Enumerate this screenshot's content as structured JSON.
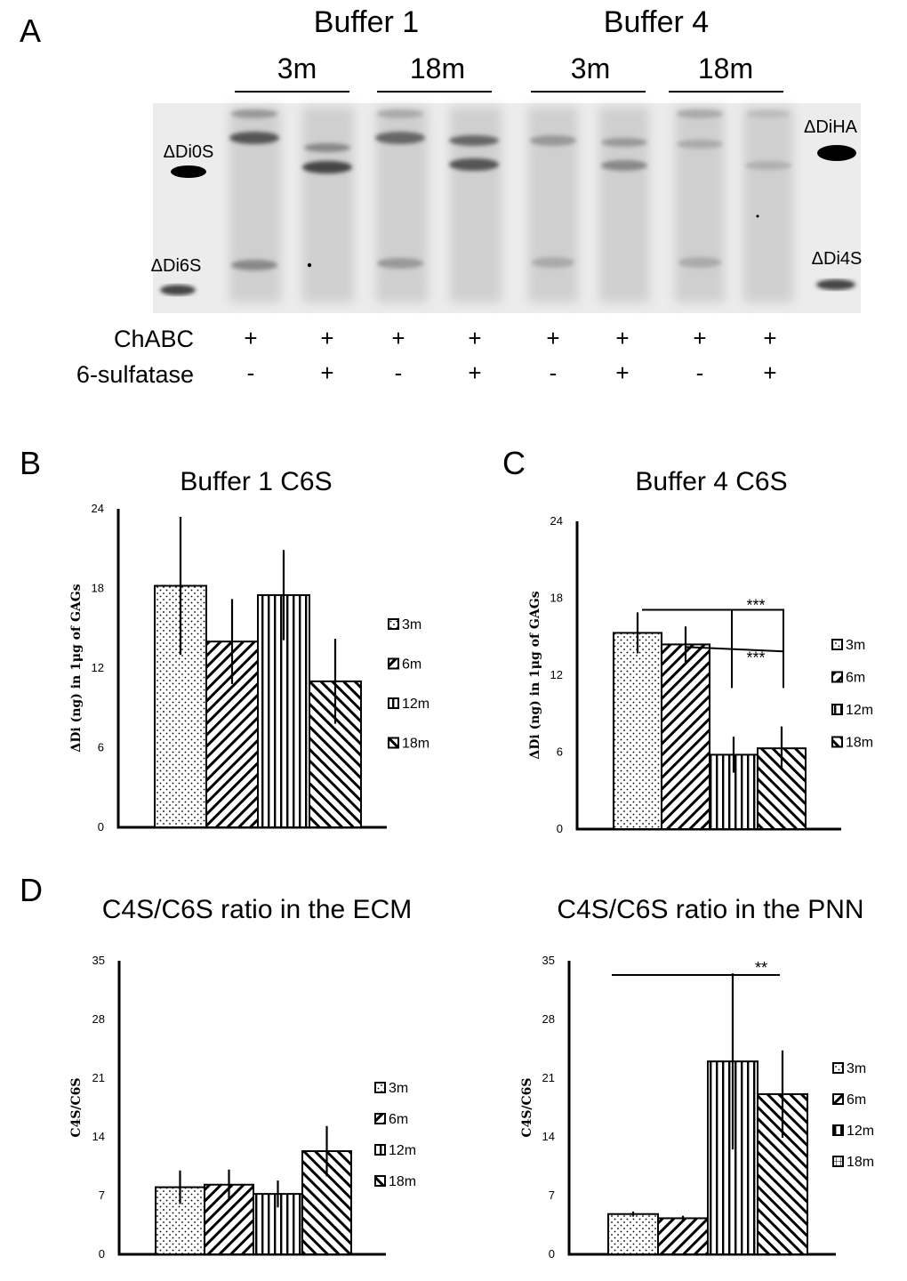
{
  "panel_a": {
    "letter": "A",
    "buffer_headers": [
      "Buffer 1",
      "Buffer 4"
    ],
    "age_headers": [
      "3m",
      "18m",
      "3m",
      "18m"
    ],
    "markers_left": [
      "ΔDi0S",
      "ΔDi6S"
    ],
    "markers_right": [
      "ΔDiHA",
      "ΔDi4S"
    ],
    "row_labels": [
      "ChABC",
      "6-sulfatase"
    ],
    "chabc_signs": [
      "+",
      "+",
      "+",
      "+",
      "+",
      "+",
      "+",
      "+"
    ],
    "sulfatase_signs": [
      "-",
      "+",
      "-",
      "+",
      "-",
      "+",
      "-",
      "+"
    ]
  },
  "chart_data": [
    {
      "id": "B",
      "letter": "B",
      "type": "bar",
      "title": "Buffer 1 C6S",
      "ylabel": "ΔDi (ng) in 1μg of GAGs",
      "ylim": [
        0,
        24
      ],
      "yticks": [
        "0",
        "6",
        "12",
        "18",
        "24"
      ],
      "categories": [
        "3m",
        "6m",
        "12m",
        "18m"
      ],
      "values": [
        18.2,
        14,
        17.5,
        11
      ],
      "errors": [
        5.2,
        3.2,
        3.4,
        3.2
      ],
      "legend": [
        "3m",
        "6m",
        "12m",
        "18m"
      ],
      "significance": []
    },
    {
      "id": "C",
      "letter": "C",
      "type": "bar",
      "title": "Buffer 4 C6S",
      "ylabel": "ΔDi (ng) in 1μg of GAGs",
      "ylim": [
        0,
        24
      ],
      "yticks": [
        "0",
        "6",
        "12",
        "18",
        "24"
      ],
      "categories": [
        "3m",
        "6m",
        "12m",
        "18m"
      ],
      "values": [
        15.3,
        14.4,
        5.8,
        6.3
      ],
      "errors": [
        1.6,
        1.4,
        1.4,
        1.7
      ],
      "legend": [
        "3m",
        "6m",
        "12m",
        "18m"
      ],
      "significance": [
        "***",
        "***"
      ]
    },
    {
      "id": "D1",
      "letter": "D",
      "type": "bar",
      "title": "C4S/C6S ratio in the ECM",
      "ylabel": "C4S/C6S",
      "ylim": [
        0,
        35
      ],
      "yticks": [
        "0",
        "7",
        "14",
        "21",
        "28",
        "35"
      ],
      "categories": [
        "3m",
        "6m",
        "12m",
        "18m"
      ],
      "values": [
        8,
        8.3,
        7.2,
        12.3
      ],
      "errors": [
        2,
        1.8,
        1.6,
        3
      ],
      "legend": [
        "3m",
        "6m",
        "12m",
        "18m"
      ],
      "significance": []
    },
    {
      "id": "D2",
      "letter": "",
      "type": "bar",
      "title": "C4S/C6S ratio in the PNN",
      "ylabel": "C4S/C6S",
      "ylim": [
        0,
        35
      ],
      "yticks": [
        "0",
        "7",
        "14",
        "21",
        "28",
        "35"
      ],
      "categories": [
        "3m",
        "6m",
        "12m",
        "18m"
      ],
      "values": [
        4.8,
        4.3,
        23,
        19.1
      ],
      "errors": [
        0.3,
        0.3,
        10.5,
        5.2
      ],
      "legend": [
        "3m",
        "6m",
        "12m",
        "18m"
      ],
      "significance": [
        "**"
      ]
    }
  ],
  "colors": {
    "ink": "#000000",
    "gel_background": "#ececec",
    "bar_fill": "#ffffff"
  }
}
